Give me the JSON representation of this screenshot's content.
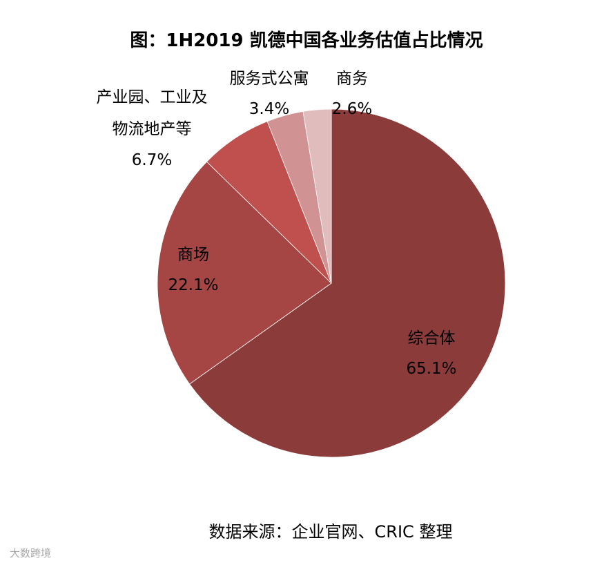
{
  "chart_data": {
    "type": "pie",
    "title": "图：1H2019 凯德中国各业务估值占比情况",
    "categories": [
      "综合体",
      "商场",
      "产业园、工业及物流地产等",
      "服务式公寓",
      "商务"
    ],
    "values": [
      65.1,
      22.1,
      6.7,
      3.4,
      2.6
    ],
    "value_labels": [
      "65.1%",
      "22.1%",
      "6.7%",
      "3.4%",
      "2.6%"
    ],
    "colors": [
      "#8c3b3b",
      "#a54645",
      "#bf504e",
      "#d09292",
      "#e0bcbc"
    ],
    "source": "数据来源：企业官网、CRIC 整理",
    "watermark": "大数跨境"
  }
}
